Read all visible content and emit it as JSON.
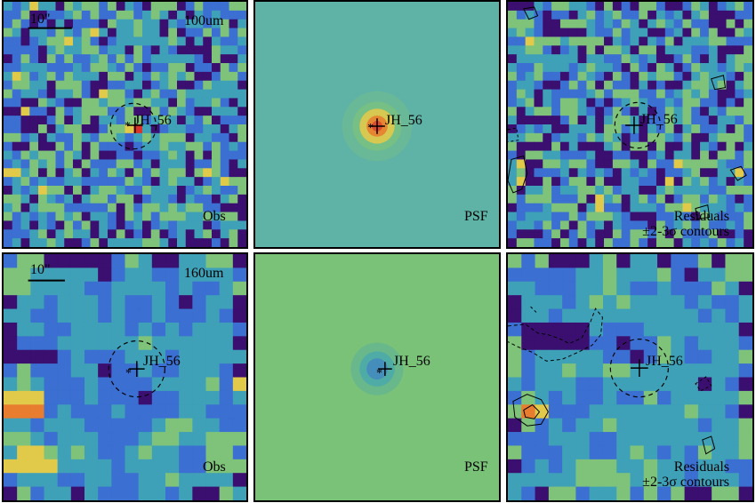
{
  "figure": {
    "panels": [
      {
        "id": "r1c1",
        "kind": "obs",
        "band": "100um",
        "scalebar": "10\"",
        "corner": "Obs",
        "source": "JH_56"
      },
      {
        "id": "r1c2",
        "kind": "psf",
        "band": "",
        "scalebar": "",
        "corner": "PSF",
        "source": "JH_56"
      },
      {
        "id": "r1c3",
        "kind": "resid",
        "band": "",
        "scalebar": "",
        "corner": "Residuals",
        "corner2": "±2-3σ contours",
        "source": "JH_56"
      },
      {
        "id": "r2c1",
        "kind": "obs",
        "band": "160um",
        "scalebar": "10\"",
        "corner": "Obs",
        "source": "JH_56"
      },
      {
        "id": "r2c2",
        "kind": "psf",
        "band": "",
        "scalebar": "",
        "corner": "PSF",
        "source": "JH_56"
      },
      {
        "id": "r2c3",
        "kind": "resid",
        "band": "",
        "scalebar": "",
        "corner": "Residuals",
        "corner2": "±2-3σ contours",
        "source": "JH_56"
      }
    ],
    "colors": {
      "deep": "#3b0f70",
      "blue": "#3b6fd1",
      "teal": "#3fa1b8",
      "green": "#7fc37a",
      "yellow": "#e1c94a",
      "orange": "#e87d2f",
      "red": "#d9342b",
      "psf_bg_100": "#5fb3a6",
      "psf_bg_160": "#7ac278"
    }
  }
}
